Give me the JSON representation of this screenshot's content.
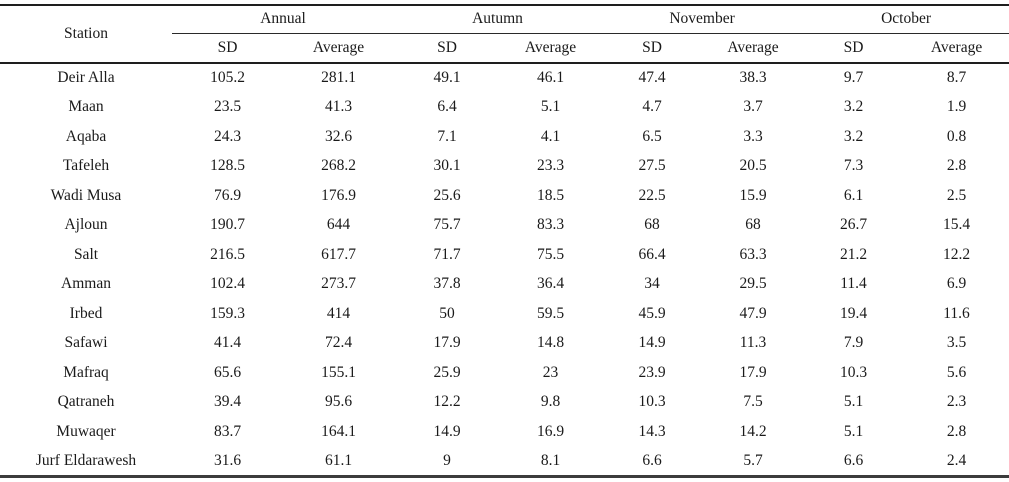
{
  "table": {
    "station_header": "Station",
    "groups": [
      {
        "label": "Annual"
      },
      {
        "label": "Autumn"
      },
      {
        "label": "November"
      },
      {
        "label": "October"
      }
    ],
    "subheaders": [
      "SD",
      "Average"
    ],
    "rows": [
      {
        "station": "Deir Alla",
        "values": [
          "105.2",
          "281.1",
          "49.1",
          "46.1",
          "47.4",
          "38.3",
          "9.7",
          "8.7"
        ]
      },
      {
        "station": "Maan",
        "values": [
          "23.5",
          "41.3",
          "6.4",
          "5.1",
          "4.7",
          "3.7",
          "3.2",
          "1.9"
        ]
      },
      {
        "station": "Aqaba",
        "values": [
          "24.3",
          "32.6",
          "7.1",
          "4.1",
          "6.5",
          "3.3",
          "3.2",
          "0.8"
        ]
      },
      {
        "station": "Tafeleh",
        "values": [
          "128.5",
          "268.2",
          "30.1",
          "23.3",
          "27.5",
          "20.5",
          "7.3",
          "2.8"
        ]
      },
      {
        "station": "Wadi Musa",
        "values": [
          "76.9",
          "176.9",
          "25.6",
          "18.5",
          "22.5",
          "15.9",
          "6.1",
          "2.5"
        ]
      },
      {
        "station": "Ajloun",
        "values": [
          "190.7",
          "644",
          "75.7",
          "83.3",
          "68",
          "68",
          "26.7",
          "15.4"
        ]
      },
      {
        "station": "Salt",
        "values": [
          "216.5",
          "617.7",
          "71.7",
          "75.5",
          "66.4",
          "63.3",
          "21.2",
          "12.2"
        ]
      },
      {
        "station": "Amman",
        "values": [
          "102.4",
          "273.7",
          "37.8",
          "36.4",
          "34",
          "29.5",
          "11.4",
          "6.9"
        ]
      },
      {
        "station": "Irbed",
        "values": [
          "159.3",
          "414",
          "50",
          "59.5",
          "45.9",
          "47.9",
          "19.4",
          "11.6"
        ]
      },
      {
        "station": "Safawi",
        "values": [
          "41.4",
          "72.4",
          "17.9",
          "14.8",
          "14.9",
          "11.3",
          "7.9",
          "3.5"
        ]
      },
      {
        "station": "Mafraq",
        "values": [
          "65.6",
          "155.1",
          "25.9",
          "23",
          "23.9",
          "17.9",
          "10.3",
          "5.6"
        ]
      },
      {
        "station": "Qatraneh",
        "values": [
          "39.4",
          "95.6",
          "12.2",
          "9.8",
          "10.3",
          "7.5",
          "5.1",
          "2.3"
        ]
      },
      {
        "station": "Muwaqer",
        "values": [
          "83.7",
          "164.1",
          "14.9",
          "16.9",
          "14.3",
          "14.2",
          "5.1",
          "2.8"
        ]
      },
      {
        "station": "Jurf Eldarawesh",
        "values": [
          "31.6",
          "61.1",
          "9",
          "8.1",
          "6.6",
          "5.7",
          "6.6",
          "2.4"
        ]
      }
    ]
  }
}
